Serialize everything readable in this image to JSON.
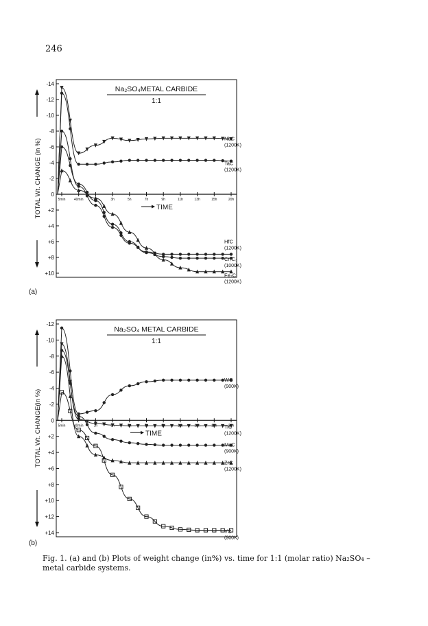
{
  "page_number": "246",
  "caption": "Fig. 1. (a) and (b) Plots of weight change (in%) vs. time for 1:1 (molar ratio) Na₂SO₄ – metal carbide systems.",
  "chart_data": [
    {
      "panel_label": "(a)",
      "type": "line",
      "title": "Na₂SO₄METAL CARBIDE",
      "subtitle": "1:1",
      "ylabel": "TOTAL Wt. CHANGE (in %)",
      "xlabel": "TIME",
      "x_ticks": [
        "5min",
        "40min",
        "1h",
        "3h",
        "5h",
        "7h",
        "9h",
        "11h",
        "13h",
        "15h",
        "20h"
      ],
      "y_ticks": [
        "-14",
        "-12",
        "-10",
        "-8",
        "-6",
        "-4",
        "-2",
        "0",
        "+2",
        "+4",
        "+6",
        "+8",
        "+10"
      ],
      "ylim": [
        -14,
        10
      ],
      "y_inverted": true,
      "series": [
        {
          "name": "NbC",
          "condition": "(1200K)",
          "marker": "triangle-down",
          "values": [
            -13.5,
            -5.2,
            -6.2,
            -7.1,
            -6.8,
            -7.0,
            -7.1,
            -7.1,
            -7.1,
            -7.1,
            -7.0
          ]
        },
        {
          "name": "TaC",
          "condition": "(1200K)",
          "marker": "circle",
          "values": [
            -12.8,
            -3.8,
            -3.8,
            -4.1,
            -4.3,
            -4.3,
            -4.3,
            -4.3,
            -4.3,
            -4.3,
            -4.2
          ]
        },
        {
          "name": "HfC",
          "condition": "(1200K)",
          "marker": "circle",
          "values": [
            -8.0,
            -1.0,
            1.4,
            4.2,
            6.2,
            7.3,
            7.6,
            7.6,
            7.6,
            7.6,
            7.6
          ]
        },
        {
          "name": "Cr₇C₃",
          "condition": "(1000K)",
          "marker": "circle",
          "values": [
            -6.0,
            -1.3,
            0.8,
            3.8,
            6.0,
            7.4,
            7.9,
            8.1,
            8.1,
            8.1,
            8.1
          ]
        },
        {
          "name": "Fe₃C",
          "condition": "(1200K)",
          "marker": "triangle-up",
          "values": [
            -3.0,
            -0.5,
            0.5,
            2.5,
            4.8,
            6.8,
            8.3,
            9.3,
            9.8,
            9.8,
            9.8
          ]
        }
      ]
    },
    {
      "panel_label": "(b)",
      "type": "line",
      "title": "Na₂SO₄ METAL CARBIDE",
      "subtitle": "1:1",
      "ylabel": "TOTAL Wt. CHANGE(in %)",
      "xlabel": "TIME",
      "x_ticks": [
        "5min",
        "40min",
        "1h",
        "3h",
        "5h",
        "7h",
        "9h",
        "11h",
        "13h",
        "15h",
        "20h"
      ],
      "y_ticks": [
        "-12",
        "-10",
        "-8",
        "-6",
        "-4",
        "-2",
        "0",
        "+2",
        "+4",
        "+6",
        "+8",
        "+10",
        "+12",
        "+14"
      ],
      "ylim": [
        -12,
        14
      ],
      "y_inverted": true,
      "series": [
        {
          "name": "WC",
          "condition": "(900K)",
          "marker": "circle",
          "values": [
            -11.5,
            -0.8,
            -1.2,
            -3.2,
            -4.3,
            -4.8,
            -5.0,
            -5.0,
            -5.0,
            -5.0,
            -5.0
          ]
        },
        {
          "name": "TiC",
          "condition": "(1200K)",
          "marker": "triangle-down",
          "values": [
            -9.5,
            -0.1,
            0.4,
            0.6,
            0.7,
            0.7,
            0.7,
            0.7,
            0.7,
            0.7,
            0.7
          ]
        },
        {
          "name": "MoC",
          "condition": "(900K)",
          "marker": "circle",
          "values": [
            -8.7,
            -0.5,
            1.6,
            2.4,
            2.8,
            3.0,
            3.1,
            3.1,
            3.1,
            3.1,
            3.1
          ]
        },
        {
          "name": "ZrC",
          "condition": "(1200K)",
          "marker": "triangle-up",
          "values": [
            -8.0,
            2.0,
            4.3,
            5.0,
            5.3,
            5.3,
            5.3,
            5.3,
            5.3,
            5.3,
            5.3
          ]
        },
        {
          "name": "VC",
          "condition": "(900K)",
          "marker": "square",
          "values": [
            -3.5,
            1.2,
            3.2,
            6.8,
            9.8,
            12.0,
            13.2,
            13.6,
            13.7,
            13.7,
            13.7
          ]
        }
      ]
    }
  ]
}
